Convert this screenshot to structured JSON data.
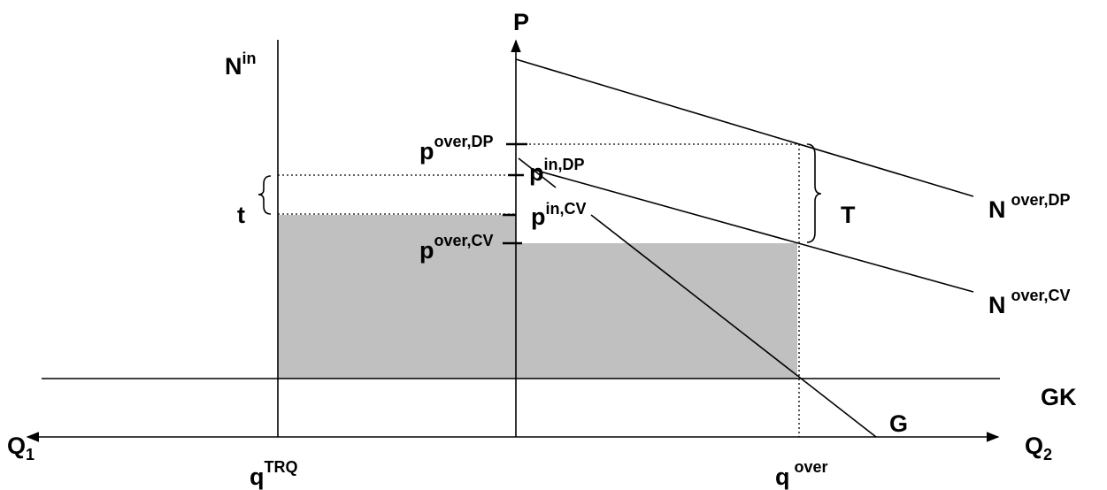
{
  "labels": {
    "n_in": {
      "base": "N",
      "sup": "in"
    },
    "p_axis": "P",
    "q1": {
      "base": "Q",
      "sub": "1"
    },
    "q2": {
      "base": "Q",
      "sub": "2"
    },
    "gk": "GK",
    "g": "G",
    "t_small": "t",
    "t_big": "T",
    "p_over_dp": {
      "base": "p",
      "sup": "over,DP"
    },
    "p_in_dp": {
      "base": "p",
      "sup": "in,DP"
    },
    "p_in_cv": {
      "base": "p",
      "sup": "in,CV"
    },
    "p_over_cv": {
      "base": "p",
      "sup": "over,CV"
    },
    "n_over_dp": {
      "base": "N",
      "sup": "over,DP"
    },
    "n_over_cv": {
      "base": "N",
      "sup": "over,CV"
    },
    "q_trq": {
      "base": "q",
      "sup": "TRQ"
    },
    "q_over": {
      "base": "q",
      "sup": "over"
    }
  }
}
